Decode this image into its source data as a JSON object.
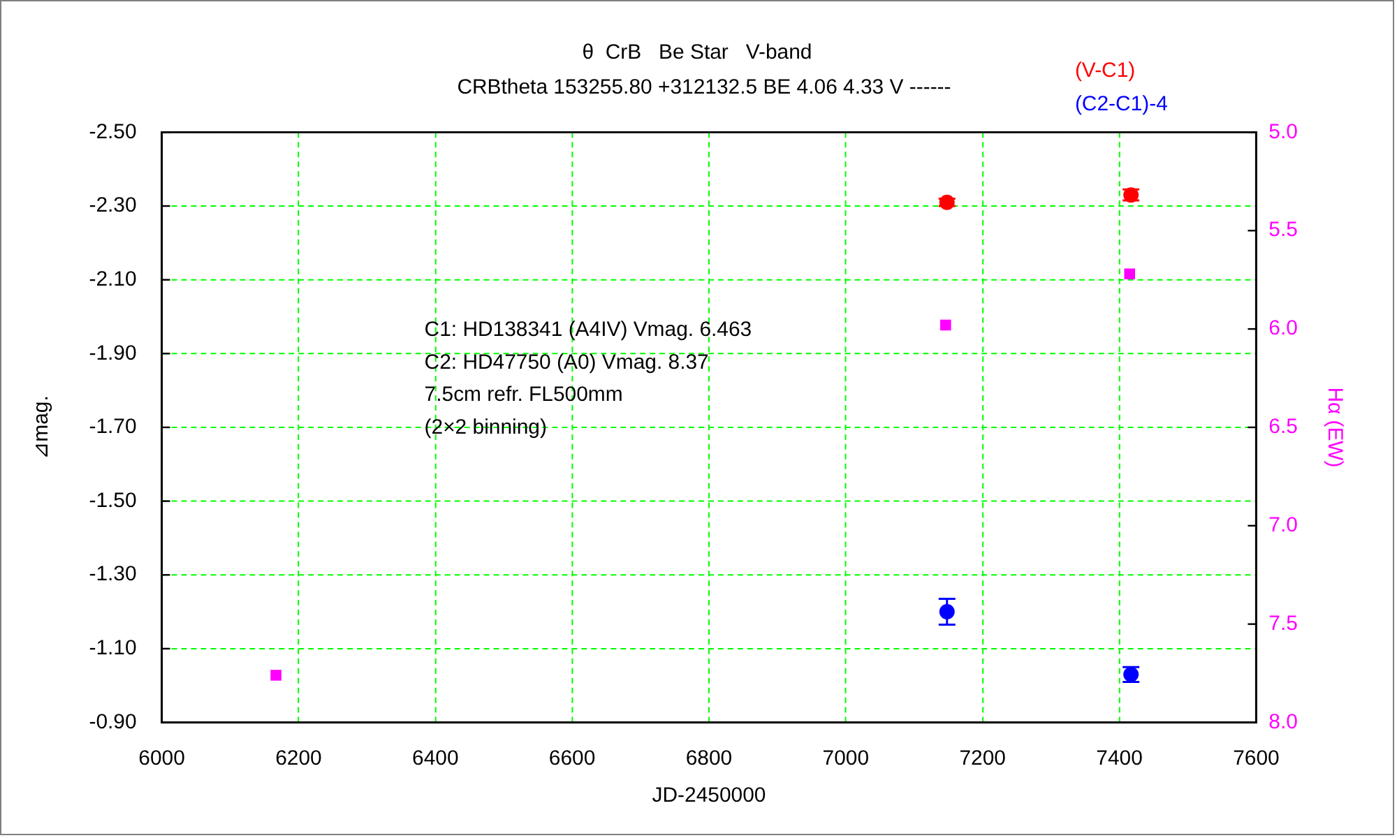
{
  "chart_data": {
    "type": "scatter",
    "title": "θ  CrB   Be Star   V-band",
    "subtitle": "CRBtheta 153255.80 +312132.5 BE 4.06 4.33 V ------",
    "xlabel": "JD-2450000",
    "ylabel": "⊿mag.",
    "y2label": "Hα (EW)",
    "annotations": [
      "C1: HD138341 (A4IV) Vmag. 6.463",
      "C2: HD47750 (A0) Vmag. 8.37",
      "7.5cm refr. FL500mm",
      "(2×2 binning)"
    ],
    "series": [
      {
        "name": "(V-C1)",
        "color": "#ff0000",
        "marker": "circle",
        "x": [
          7148,
          7417
        ],
        "values": [
          -2.31,
          -2.33
        ],
        "errors": [
          0.01,
          0.015
        ]
      },
      {
        "name": "(C2-C1)-4",
        "color": "#0000ff",
        "x": [
          7148,
          7417
        ],
        "values": [
          -1.2,
          -1.03
        ],
        "errors": [
          0.035,
          0.02
        ]
      },
      {
        "color": "#ff00ff",
        "marker": "square",
        "axis": "y2",
        "x": [
          6167,
          7146,
          7415
        ],
        "values": [
          7.76,
          5.98,
          5.72
        ]
      }
    ],
    "xlim": [
      6000,
      7600
    ],
    "xticks": [
      6000,
      6200,
      6400,
      6600,
      6800,
      7000,
      7200,
      7400,
      7600
    ],
    "ylim": [
      -0.9,
      -2.5
    ],
    "yticks": [
      {
        "value": -2.5,
        "label": "-2.50"
      },
      {
        "value": -2.3,
        "label": "-2.30"
      },
      {
        "value": -2.1,
        "label": "-2.10"
      },
      {
        "value": -1.9,
        "label": "-1.90"
      },
      {
        "value": -1.7,
        "label": "-1.70"
      },
      {
        "value": -1.5,
        "label": "-1.50"
      },
      {
        "value": -1.3,
        "label": "-1.30"
      },
      {
        "value": -1.1,
        "label": "-1.10"
      },
      {
        "value": -0.9,
        "label": "-0.90"
      }
    ],
    "y2lim": [
      8,
      5
    ],
    "y2ticks": [
      {
        "value": 5,
        "label": "5.0"
      },
      {
        "value": 5.5,
        "label": "5.5"
      },
      {
        "value": 6,
        "label": "6.0"
      },
      {
        "value": 6.5,
        "label": "6.5"
      },
      {
        "value": 7,
        "label": "7.0"
      },
      {
        "value": 7.5,
        "label": "7.5"
      },
      {
        "value": 8,
        "label": "8.0"
      }
    ],
    "grid": true,
    "legend": "top right"
  }
}
